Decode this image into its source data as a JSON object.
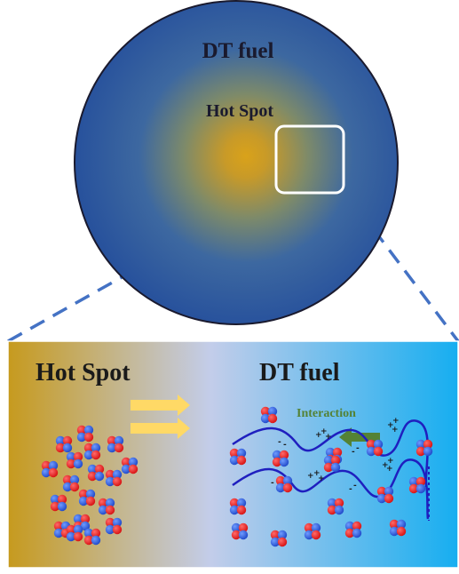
{
  "sphere": {
    "outer_label": "DT fuel",
    "inner_label": "Hot Spot",
    "colors": {
      "core": "#d9a21a",
      "edge": "#254f9c",
      "outline": "#1a1a2e"
    }
  },
  "zoom_panel": {
    "left_label": "Hot Spot",
    "right_label": "DT fuel",
    "interaction_label": "Interaction",
    "colors": {
      "left": "#c69a1e",
      "middle": "#c3cdea",
      "right": "#16aef0",
      "flow_arrows": "#ffd966",
      "interaction_arrow": "#548235",
      "wave": "#1f1fbf",
      "proton": "#ee1c1c",
      "neutron": "#2e5fe8"
    }
  },
  "charges": {
    "positive": "+",
    "negative": "-"
  }
}
